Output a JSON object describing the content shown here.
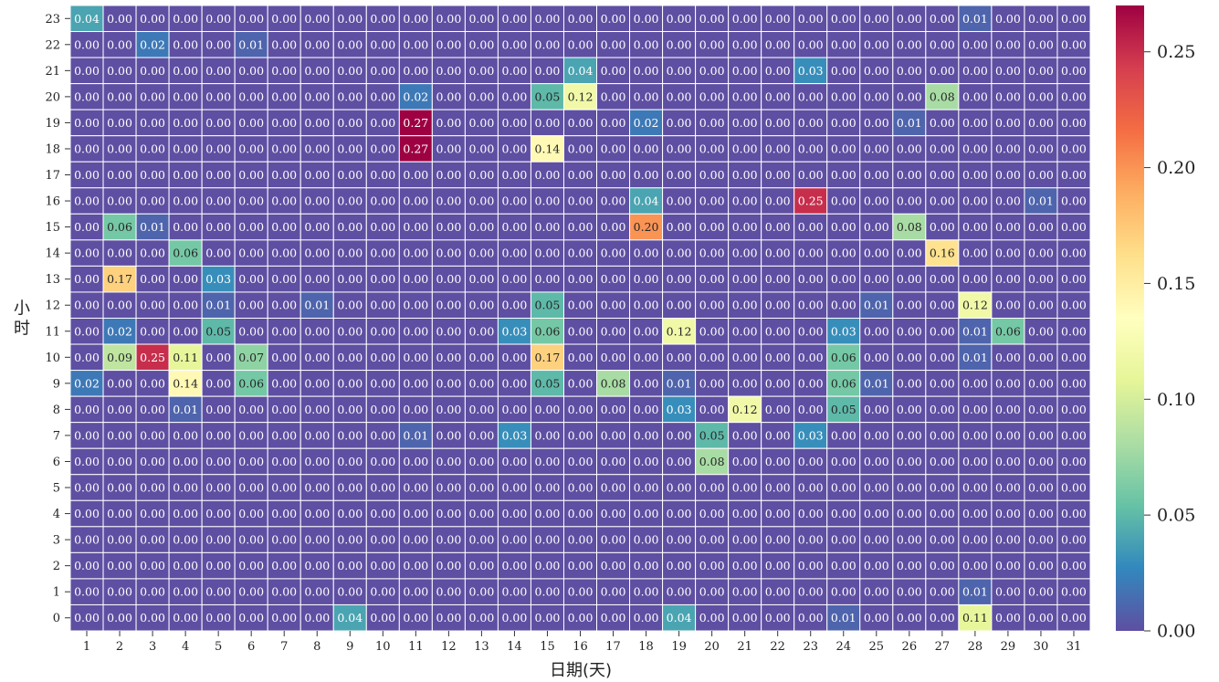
{
  "chart_data": {
    "type": "heatmap",
    "xlabel": "日期(天)",
    "ylabel": "小时",
    "x_categories": [
      "1",
      "2",
      "3",
      "4",
      "5",
      "6",
      "7",
      "8",
      "9",
      "10",
      "11",
      "12",
      "13",
      "14",
      "15",
      "16",
      "17",
      "18",
      "19",
      "20",
      "21",
      "22",
      "23",
      "24",
      "25",
      "26",
      "27",
      "28",
      "29",
      "30",
      "31"
    ],
    "y_categories": [
      "23",
      "22",
      "21",
      "20",
      "19",
      "18",
      "17",
      "16",
      "15",
      "14",
      "13",
      "12",
      "11",
      "10",
      "9",
      "8",
      "7",
      "6",
      "5",
      "4",
      "3",
      "2",
      "1",
      "0"
    ],
    "value_format": "0.00",
    "colorbar": {
      "colormap": "Spectral_r",
      "vmin": 0.0,
      "vmax": 0.27,
      "ticks": [
        0.0,
        0.05,
        0.1,
        0.15,
        0.2,
        0.25
      ],
      "tick_labels": [
        "0.00",
        "0.05",
        "0.10",
        "0.15",
        "0.20",
        "0.25"
      ]
    },
    "values": [
      [
        0.04,
        0,
        0,
        0,
        0,
        0,
        0,
        0,
        0,
        0,
        0,
        0,
        0,
        0,
        0,
        0,
        0,
        0,
        0,
        0,
        0,
        0,
        0,
        0,
        0,
        0,
        0,
        0.01,
        0,
        0,
        0
      ],
      [
        0,
        0,
        0.02,
        0,
        0,
        0.01,
        0,
        0,
        0,
        0,
        0,
        0,
        0,
        0,
        0,
        0,
        0,
        0,
        0,
        0,
        0,
        0,
        0,
        0,
        0,
        0,
        0,
        0,
        0,
        0,
        0
      ],
      [
        0,
        0,
        0,
        0,
        0,
        0,
        0,
        0,
        0,
        0,
        0,
        0,
        0,
        0,
        0,
        0.04,
        0,
        0,
        0,
        0,
        0,
        0,
        0.03,
        0,
        0,
        0,
        0,
        0,
        0,
        0,
        0
      ],
      [
        0,
        0,
        0,
        0,
        0,
        0,
        0,
        0,
        0,
        0,
        0.02,
        0,
        0,
        0,
        0.05,
        0.12,
        0,
        0,
        0,
        0,
        0,
        0,
        0,
        0,
        0,
        0,
        0.08,
        0,
        0,
        0,
        0
      ],
      [
        0,
        0,
        0,
        0,
        0,
        0,
        0,
        0,
        0,
        0,
        0.27,
        0,
        0,
        0,
        0,
        0,
        0,
        0.02,
        0,
        0,
        0,
        0,
        0,
        0,
        0,
        0.01,
        0,
        0,
        0,
        0,
        0
      ],
      [
        0,
        0,
        0,
        0,
        0,
        0,
        0,
        0,
        0,
        0,
        0.27,
        0,
        0,
        0,
        0.14,
        0,
        0,
        0,
        0,
        0,
        0,
        0,
        0,
        0,
        0,
        0,
        0,
        0,
        0,
        0,
        0
      ],
      [
        0,
        0,
        0,
        0,
        0,
        0,
        0,
        0,
        0,
        0,
        0,
        0,
        0,
        0,
        0,
        0,
        0,
        0,
        0,
        0,
        0,
        0,
        0,
        0,
        0,
        0,
        0,
        0,
        0,
        0,
        0
      ],
      [
        0,
        0,
        0,
        0,
        0,
        0,
        0,
        0,
        0,
        0,
        0,
        0,
        0,
        0,
        0,
        0,
        0,
        0.04,
        0,
        0,
        0,
        0,
        0.25,
        0,
        0,
        0,
        0,
        0,
        0,
        0.01,
        0
      ],
      [
        0,
        0.06,
        0.01,
        0,
        0,
        0,
        0,
        0,
        0,
        0,
        0,
        0,
        0,
        0,
        0,
        0,
        0,
        0.2,
        0,
        0,
        0,
        0,
        0,
        0,
        0,
        0.08,
        0,
        0,
        0,
        0,
        0
      ],
      [
        0,
        0,
        0,
        0.06,
        0,
        0,
        0,
        0,
        0,
        0,
        0,
        0,
        0,
        0,
        0,
        0,
        0,
        0,
        0,
        0,
        0,
        0,
        0,
        0,
        0,
        0,
        0.16,
        0,
        0,
        0,
        0
      ],
      [
        0,
        0.17,
        0,
        0,
        0.03,
        0,
        0,
        0,
        0,
        0,
        0,
        0,
        0,
        0,
        0,
        0,
        0,
        0,
        0,
        0,
        0,
        0,
        0,
        0,
        0,
        0,
        0,
        0,
        0,
        0,
        0
      ],
      [
        0,
        0,
        0,
        0,
        0.01,
        0,
        0,
        0.01,
        0,
        0,
        0,
        0,
        0,
        0,
        0.05,
        0,
        0,
        0,
        0,
        0,
        0,
        0,
        0,
        0,
        0.01,
        0,
        0,
        0.12,
        0,
        0,
        0
      ],
      [
        0,
        0.02,
        0,
        0,
        0.05,
        0,
        0,
        0,
        0,
        0,
        0,
        0,
        0,
        0.03,
        0.06,
        0,
        0,
        0,
        0.12,
        0,
        0,
        0,
        0,
        0.03,
        0,
        0,
        0,
        0.01,
        0.06,
        0,
        0
      ],
      [
        0,
        0.09,
        0.25,
        0.11,
        0,
        0.07,
        0,
        0,
        0,
        0,
        0,
        0,
        0,
        0,
        0.17,
        0,
        0,
        0,
        0,
        0,
        0,
        0,
        0,
        0.06,
        0,
        0,
        0,
        0.01,
        0,
        0,
        0
      ],
      [
        0.02,
        0,
        0,
        0.14,
        0,
        0.06,
        0,
        0,
        0,
        0,
        0,
        0,
        0,
        0,
        0.05,
        0,
        0.08,
        0,
        0.01,
        0,
        0,
        0,
        0,
        0.06,
        0.01,
        0,
        0,
        0,
        0,
        0,
        0
      ],
      [
        0,
        0,
        0,
        0.01,
        0,
        0,
        0,
        0,
        0,
        0,
        0,
        0,
        0,
        0,
        0,
        0,
        0,
        0,
        0.03,
        0,
        0.12,
        0,
        0,
        0.05,
        0,
        0,
        0,
        0,
        0,
        0,
        0
      ],
      [
        0,
        0,
        0,
        0,
        0,
        0,
        0,
        0,
        0,
        0,
        0.01,
        0,
        0,
        0.03,
        0,
        0,
        0,
        0,
        0,
        0.05,
        0,
        0,
        0.03,
        0,
        0,
        0,
        0,
        0,
        0,
        0,
        0
      ],
      [
        0,
        0,
        0,
        0,
        0,
        0,
        0,
        0,
        0,
        0,
        0,
        0,
        0,
        0,
        0,
        0,
        0,
        0,
        0,
        0.08,
        0,
        0,
        0,
        0,
        0,
        0,
        0,
        0,
        0,
        0,
        0
      ],
      [
        0,
        0,
        0,
        0,
        0,
        0,
        0,
        0,
        0,
        0,
        0,
        0,
        0,
        0,
        0,
        0,
        0,
        0,
        0,
        0,
        0,
        0,
        0,
        0,
        0,
        0,
        0,
        0,
        0,
        0,
        0
      ],
      [
        0,
        0,
        0,
        0,
        0,
        0,
        0,
        0,
        0,
        0,
        0,
        0,
        0,
        0,
        0,
        0,
        0,
        0,
        0,
        0,
        0,
        0,
        0,
        0,
        0,
        0,
        0,
        0,
        0,
        0,
        0
      ],
      [
        0,
        0,
        0,
        0,
        0,
        0,
        0,
        0,
        0,
        0,
        0,
        0,
        0,
        0,
        0,
        0,
        0,
        0,
        0,
        0,
        0,
        0,
        0,
        0,
        0,
        0,
        0,
        0,
        0,
        0,
        0
      ],
      [
        0,
        0,
        0,
        0,
        0,
        0,
        0,
        0,
        0,
        0,
        0,
        0,
        0,
        0,
        0,
        0,
        0,
        0,
        0,
        0,
        0,
        0,
        0,
        0,
        0,
        0,
        0,
        0,
        0,
        0,
        0
      ],
      [
        0,
        0,
        0,
        0,
        0,
        0,
        0,
        0,
        0,
        0,
        0,
        0,
        0,
        0,
        0,
        0,
        0,
        0,
        0,
        0,
        0,
        0,
        0,
        0,
        0,
        0,
        0,
        0.01,
        0,
        0,
        0
      ],
      [
        0,
        0,
        0,
        0,
        0,
        0,
        0,
        0,
        0.04,
        0,
        0,
        0,
        0,
        0,
        0,
        0,
        0,
        0,
        0.04,
        0,
        0,
        0,
        0,
        0.01,
        0,
        0,
        0,
        0.11,
        0,
        0,
        0
      ]
    ]
  }
}
